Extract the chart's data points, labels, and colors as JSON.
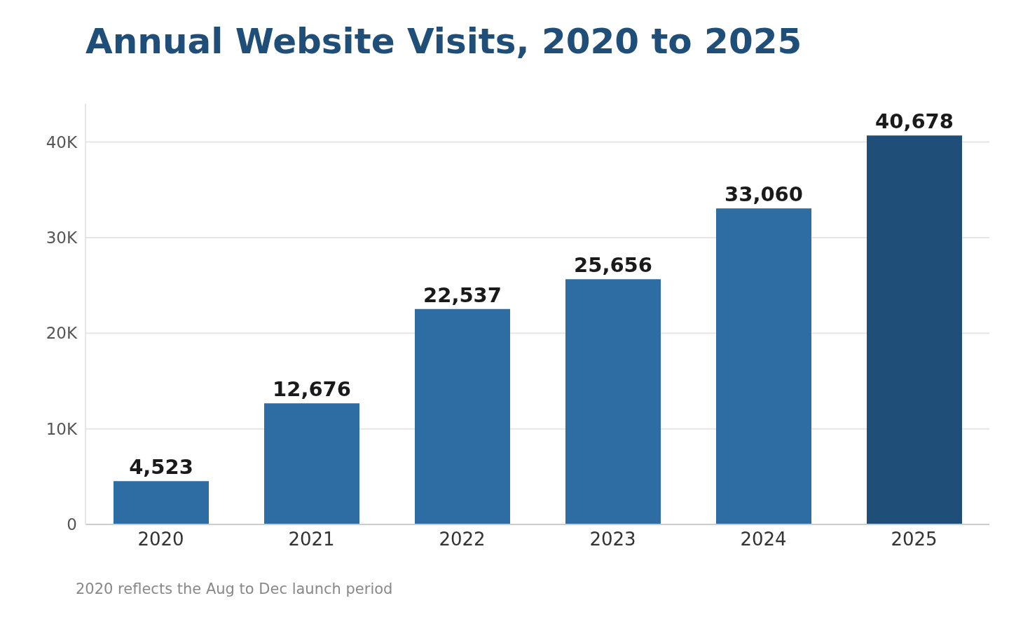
{
  "chart_data": {
    "type": "bar",
    "title": "Annual Website Visits, 2020 to 2025",
    "categories": [
      "2020",
      "2021",
      "2022",
      "2023",
      "2024",
      "2025"
    ],
    "values": [
      4523,
      12676,
      22537,
      25656,
      33060,
      40678
    ],
    "colors": [
      "#2e6da4",
      "#2e6da4",
      "#2e6da4",
      "#2e6da4",
      "#2e6da4",
      "#1f4e79"
    ],
    "ylim": [
      0,
      44000
    ],
    "yticks": [
      0,
      {
        "value": 10000,
        "label": "10K"
      },
      {
        "value": 20000,
        "label": "20K"
      },
      {
        "value": 30000,
        "label": "30K"
      },
      {
        "value": 40000,
        "label": "40K"
      }
    ],
    "value_labels": [
      "4,523",
      "12,676",
      "22,537",
      "25,656",
      "33,060",
      "40,678"
    ],
    "grid": "y",
    "legend": false,
    "annotations": [
      "2020 reflects the Aug to Dec launch period"
    ]
  }
}
